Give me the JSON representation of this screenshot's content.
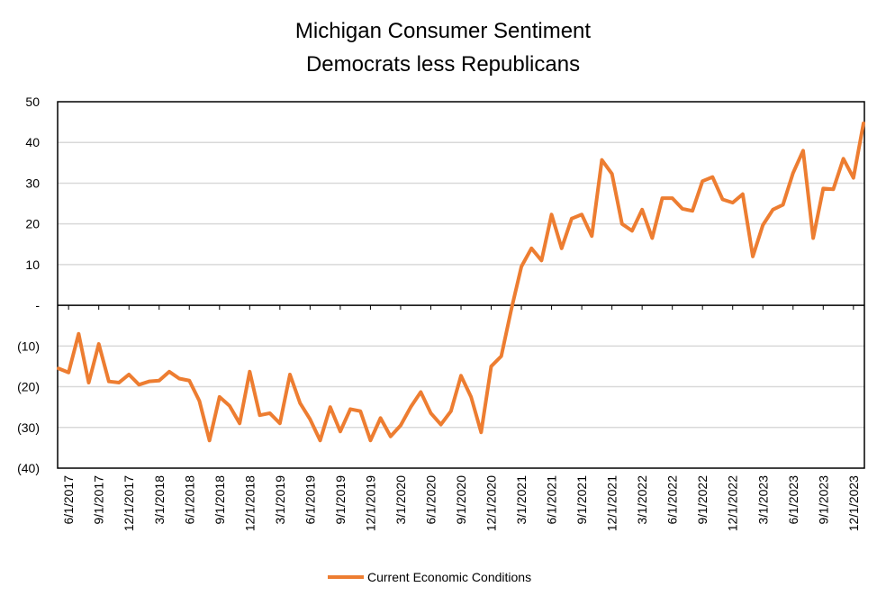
{
  "chart_data": {
    "type": "line",
    "title": "Michigan Consumer Sentiment",
    "subtitle": "Democrats less Republicans",
    "xlabel": "",
    "ylabel": "",
    "ylim": [
      -40,
      50
    ],
    "y_ticks": [
      50,
      40,
      30,
      20,
      10,
      0,
      -10,
      -20,
      -30,
      -40
    ],
    "y_tick_labels": [
      "50",
      "40",
      "30",
      "20",
      "10",
      "-",
      "(10)",
      "(20)",
      "(30)",
      "(40)"
    ],
    "x_tick_labels": [
      "6/1/2017",
      "9/1/2017",
      "12/1/2017",
      "3/1/2018",
      "6/1/2018",
      "9/1/2018",
      "12/1/2018",
      "3/1/2019",
      "6/1/2019",
      "9/1/2019",
      "12/1/2019",
      "3/1/2020",
      "6/1/2020",
      "9/1/2020",
      "12/1/2020",
      "3/1/2021",
      "6/1/2021",
      "9/1/2021",
      "12/1/2021",
      "3/1/2022",
      "6/1/2022",
      "9/1/2022",
      "12/1/2022",
      "3/1/2023",
      "6/1/2023",
      "9/1/2023",
      "12/1/2023"
    ],
    "grid": true,
    "legend_position": "bottom",
    "line_color": "#ED7D31",
    "series": [
      {
        "name": "Current Economic Conditions",
        "x": [
          "5/1/2017",
          "6/1/2017",
          "7/1/2017",
          "8/1/2017",
          "9/1/2017",
          "10/1/2017",
          "11/1/2017",
          "12/1/2017",
          "1/1/2018",
          "2/1/2018",
          "3/1/2018",
          "4/1/2018",
          "5/1/2018",
          "6/1/2018",
          "7/1/2018",
          "8/1/2018",
          "9/1/2018",
          "10/1/2018",
          "11/1/2018",
          "12/1/2018",
          "1/1/2019",
          "2/1/2019",
          "3/1/2019",
          "4/1/2019",
          "5/1/2019",
          "6/1/2019",
          "7/1/2019",
          "8/1/2019",
          "9/1/2019",
          "10/1/2019",
          "11/1/2019",
          "12/1/2019",
          "1/1/2020",
          "2/1/2020",
          "3/1/2020",
          "4/1/2020",
          "5/1/2020",
          "6/1/2020",
          "7/1/2020",
          "8/1/2020",
          "9/1/2020",
          "10/1/2020",
          "11/1/2020",
          "12/1/2020",
          "1/1/2021",
          "2/1/2021",
          "3/1/2021",
          "4/1/2021",
          "5/1/2021",
          "6/1/2021",
          "7/1/2021",
          "8/1/2021",
          "9/1/2021",
          "10/1/2021",
          "11/1/2021",
          "12/1/2021",
          "1/1/2022",
          "2/1/2022",
          "3/1/2022",
          "4/1/2022",
          "5/1/2022",
          "6/1/2022",
          "7/1/2022",
          "8/1/2022",
          "9/1/2022",
          "10/1/2022",
          "11/1/2022",
          "12/1/2022",
          "1/1/2023",
          "2/1/2023",
          "3/1/2023",
          "4/1/2023",
          "5/1/2023",
          "6/1/2023",
          "7/1/2023",
          "8/1/2023",
          "9/1/2023",
          "10/1/2023",
          "11/1/2023",
          "12/1/2023",
          "1/1/2024"
        ],
        "values": [
          -15.5,
          -16.5,
          -7,
          -19,
          -9.5,
          -18.7,
          -19,
          -17,
          -19.5,
          -18.7,
          -18.5,
          -16.3,
          -18,
          -18.5,
          -23.5,
          -33.2,
          -22.5,
          -24.7,
          -29,
          -16.3,
          -27,
          -26.5,
          -29,
          -17,
          -24,
          -28,
          -33.2,
          -25,
          -31,
          -25.5,
          -26,
          -33.2,
          -27.7,
          -32.2,
          -29.5,
          -25,
          -21.3,
          -26.5,
          -29.3,
          -26,
          -17.3,
          -22.5,
          -31.2,
          -15,
          -12.5,
          -1,
          9.5,
          14,
          11,
          22.3,
          14,
          21.3,
          22.3,
          17,
          35.7,
          32.3,
          20,
          18.3,
          23.5,
          16.5,
          26.3,
          26.3,
          23.7,
          23.2,
          30.5,
          31.5,
          26,
          25.2,
          27.3,
          12,
          19.7,
          23.5,
          24.7,
          32.5,
          38,
          16.5,
          28.7,
          28.5,
          36,
          31.3,
          44.7
        ]
      }
    ]
  }
}
